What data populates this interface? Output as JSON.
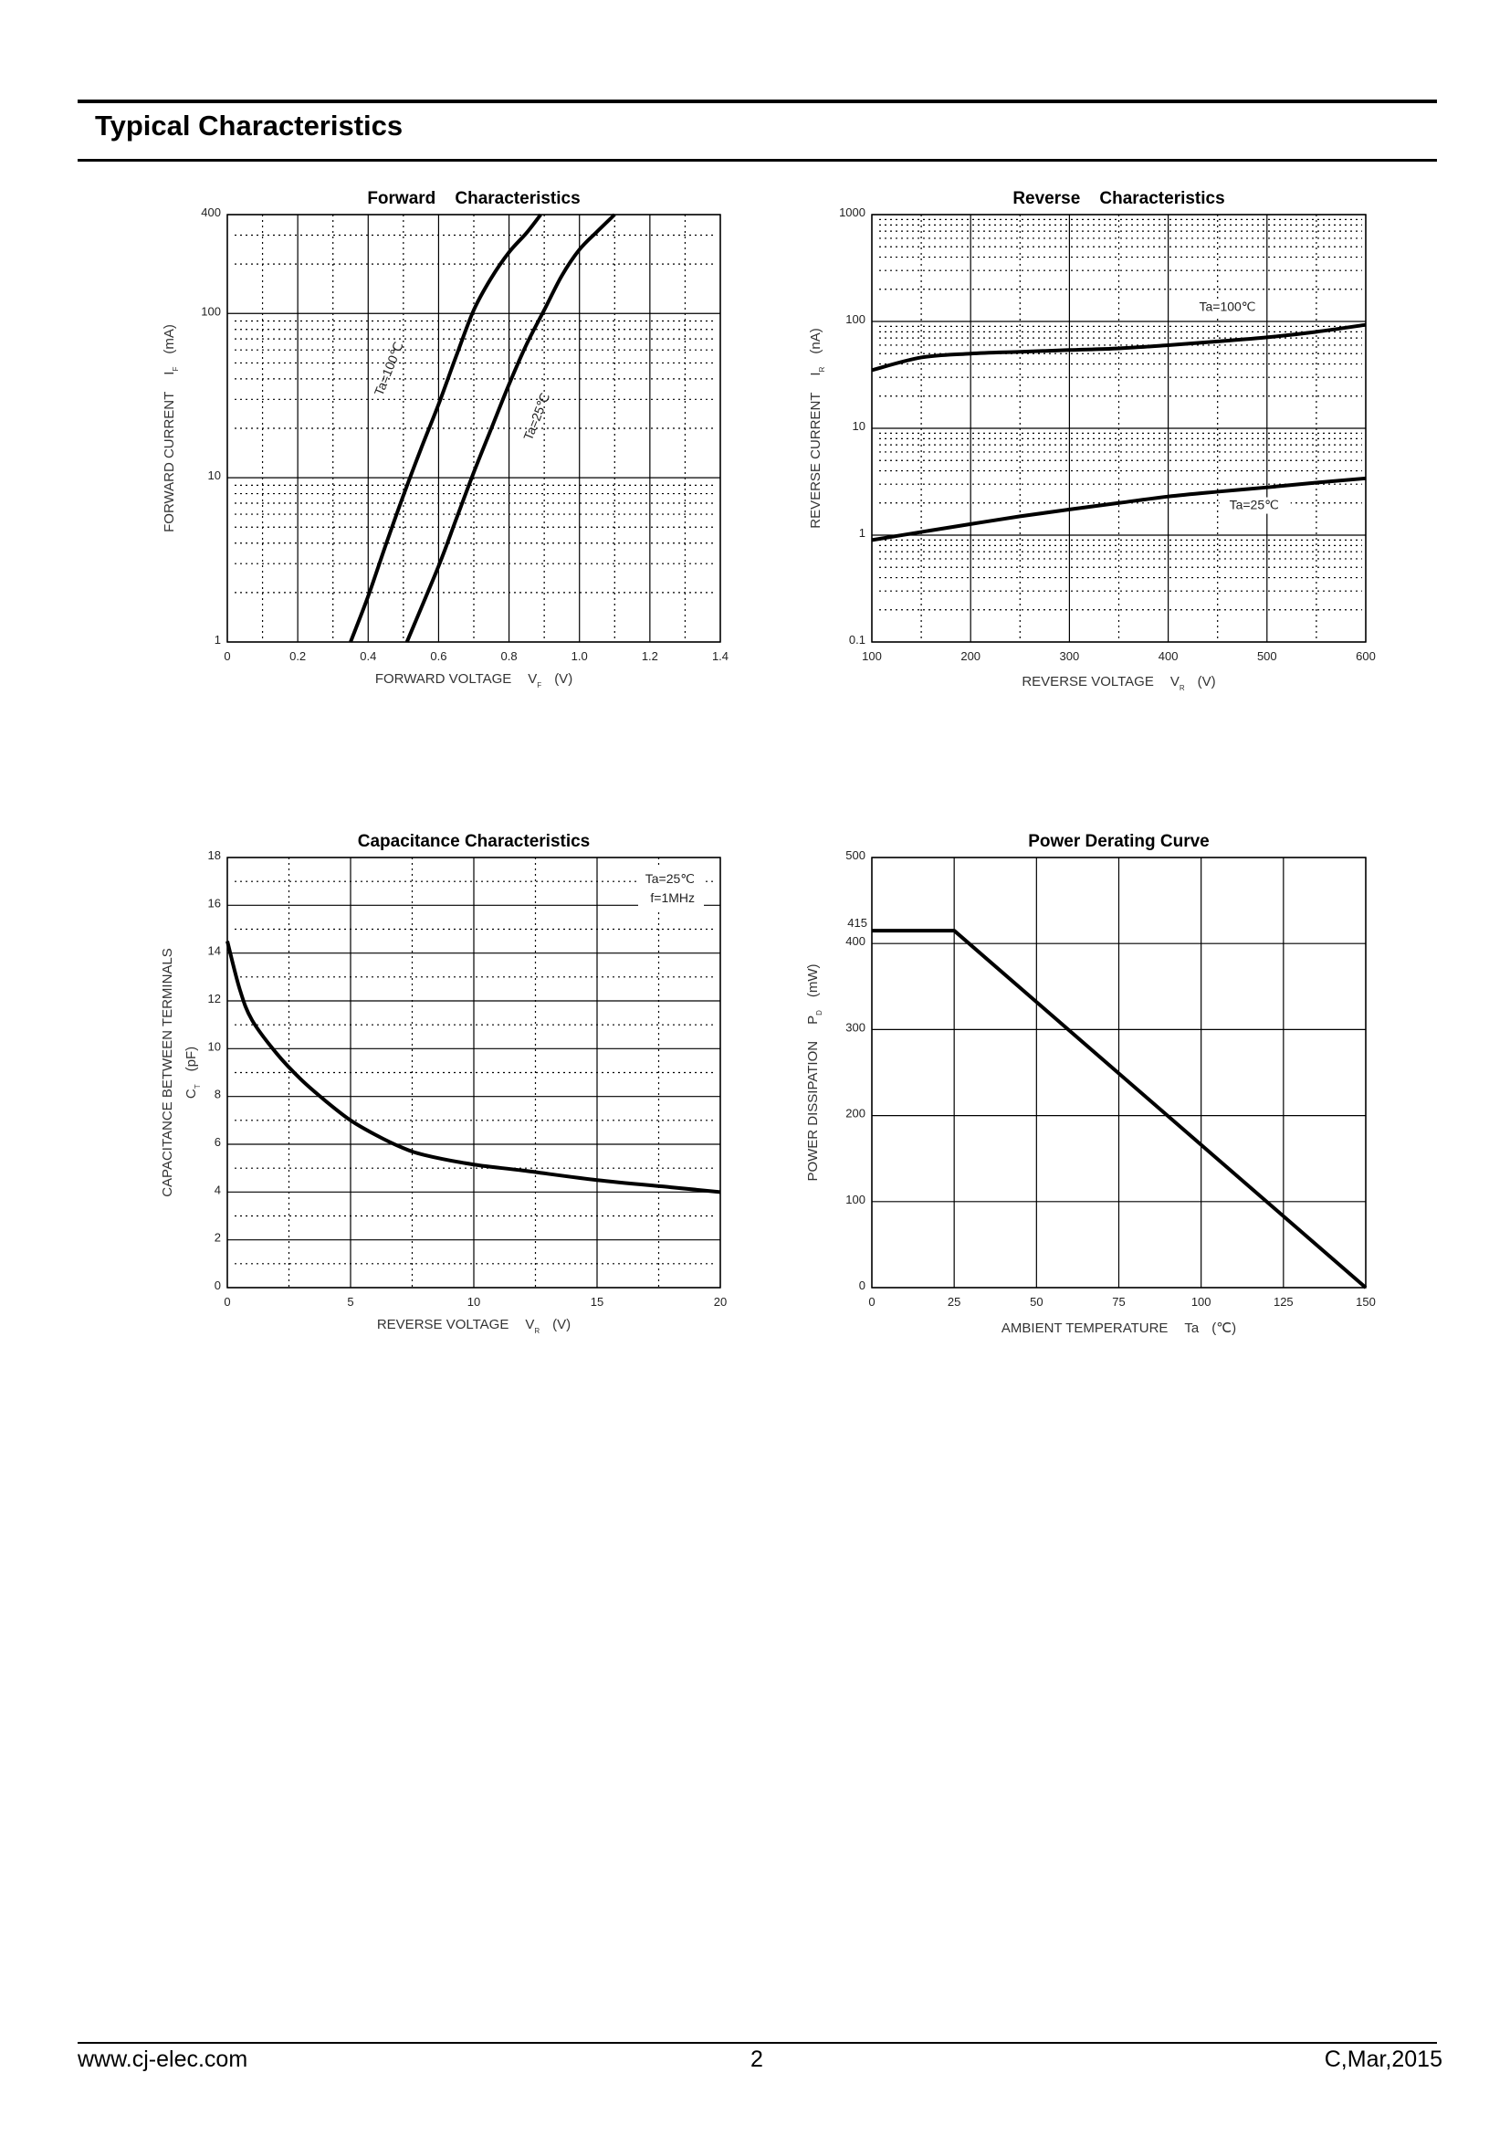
{
  "header": {
    "title": "Typical Characteristics"
  },
  "footer": {
    "url": "www.cj-elec.com",
    "page": "2",
    "revision": "C,Mar,2015"
  },
  "chart_data": [
    {
      "id": "forward",
      "type": "line",
      "title": "Forward    Characteristics",
      "xlabel": {
        "text": "FORWARD VOLTAGE",
        "symbol": "V",
        "sub": "F",
        "unit": "(V)"
      },
      "ylabel": {
        "text": "FORWARD CURRENT",
        "symbol": "I",
        "sub": "F",
        "unit": "(mA)"
      },
      "xscale": "linear",
      "yscale": "log",
      "xlim": [
        0,
        1.4
      ],
      "ylim": [
        1,
        400
      ],
      "xticks": [
        "0",
        "0.2",
        "0.4",
        "0.6",
        "0.8",
        "1.0",
        "1.2",
        "1.4"
      ],
      "yticks": [
        "1",
        "10",
        "100",
        "400"
      ],
      "grid": true,
      "series": [
        {
          "name": "Ta=100℃",
          "x": [
            0.35,
            0.4,
            0.45,
            0.5,
            0.55,
            0.6,
            0.65,
            0.7,
            0.75,
            0.8,
            0.85,
            0.89
          ],
          "y": [
            1,
            1.9,
            3.9,
            7.8,
            15,
            28,
            55,
            105,
            165,
            236,
            310,
            400
          ]
        },
        {
          "name": "Ta=25℃",
          "x": [
            0.51,
            0.6,
            0.65,
            0.7,
            0.75,
            0.8,
            0.85,
            0.9,
            0.95,
            1.0,
            1.05,
            1.1
          ],
          "y": [
            1,
            2.9,
            5.6,
            10.8,
            20,
            37,
            65,
            105,
            170,
            245,
            315,
            400
          ]
        }
      ],
      "annotations": [
        {
          "text": "Ta=100℃",
          "x": 0.47,
          "y": 45
        },
        {
          "text": "Ta=25℃",
          "x": 0.89,
          "y": 23
        }
      ]
    },
    {
      "id": "reverse",
      "type": "line",
      "title": "Reverse    Characteristics",
      "xlabel": {
        "text": "REVERSE VOLTAGE",
        "symbol": "V",
        "sub": "R",
        "unit": "(V)"
      },
      "ylabel": {
        "text": "REVERSE CURRENT",
        "symbol": "I",
        "sub": "R",
        "unit": "(nA)"
      },
      "xscale": "linear",
      "yscale": "log",
      "xlim": [
        100,
        600
      ],
      "ylim": [
        0.1,
        1000
      ],
      "xticks": [
        "100",
        "200",
        "300",
        "400",
        "500",
        "600"
      ],
      "yticks": [
        "0.1",
        "1",
        "10",
        "100",
        "1000"
      ],
      "grid": true,
      "series": [
        {
          "name": "Ta=100℃",
          "x": [
            100,
            150,
            200,
            250,
            300,
            350,
            400,
            450,
            500,
            550,
            600
          ],
          "y": [
            35,
            46,
            50,
            52,
            54,
            56,
            60,
            65,
            71,
            80,
            93
          ]
        },
        {
          "name": "Ta=25℃",
          "x": [
            100,
            150,
            200,
            250,
            300,
            350,
            400,
            450,
            500,
            550,
            600
          ],
          "y": [
            0.9,
            1.07,
            1.27,
            1.5,
            1.74,
            2.0,
            2.3,
            2.55,
            2.8,
            3.1,
            3.4
          ]
        }
      ],
      "annotations": [
        {
          "text": "Ta=100℃",
          "x": 460,
          "y": 125
        },
        {
          "text": "Ta=25℃",
          "x": 487,
          "y": 1.75
        }
      ]
    },
    {
      "id": "capacitance",
      "type": "line",
      "title": "Capacitance Characteristics",
      "xlabel": {
        "text": "REVERSE VOLTAGE",
        "symbol": "V",
        "sub": "R",
        "unit": "(V)"
      },
      "ylabel": {
        "text": "CAPACITANCE BETWEEN TERMINALS",
        "symbol": "C",
        "sub": "T",
        "unit": "(pF)"
      },
      "xscale": "linear",
      "yscale": "linear",
      "xlim": [
        0,
        20
      ],
      "ylim": [
        0,
        18
      ],
      "xticks": [
        "0",
        "5",
        "10",
        "15",
        "20"
      ],
      "yticks": [
        "0",
        "2",
        "4",
        "6",
        "8",
        "10",
        "12",
        "14",
        "16",
        "18"
      ],
      "grid": true,
      "series": [
        {
          "name": "Ta=25℃, f=1MHz",
          "x": [
            0,
            0.5,
            1,
            2,
            3,
            4,
            5,
            6,
            7,
            8,
            10,
            12,
            15,
            18,
            20
          ],
          "y": [
            14.5,
            12.5,
            11.2,
            9.8,
            8.7,
            7.8,
            7.0,
            6.4,
            5.9,
            5.55,
            5.15,
            4.9,
            4.5,
            4.2,
            4.0
          ]
        }
      ],
      "legend": [
        "Ta=25℃",
        "f=1MHz"
      ]
    },
    {
      "id": "power",
      "type": "line",
      "title": "Power Derating Curve",
      "xlabel": {
        "text": "AMBIENT TEMPERATURE",
        "symbol": "Ta",
        "sub": "",
        "unit": "(℃)"
      },
      "ylabel": {
        "text": "POWER DISSIPATION",
        "symbol": "P",
        "sub": "D",
        "unit": "(mW)"
      },
      "xscale": "linear",
      "yscale": "linear",
      "xlim": [
        0,
        150
      ],
      "ylim": [
        0,
        500
      ],
      "xticks": [
        "0",
        "25",
        "50",
        "75",
        "100",
        "125",
        "150"
      ],
      "yticks": [
        "0",
        "100",
        "200",
        "300",
        "400",
        "500"
      ],
      "extra_ytick": "415",
      "grid": true,
      "series": [
        {
          "name": "PD",
          "x": [
            0,
            25,
            150
          ],
          "y": [
            415,
            415,
            0
          ]
        }
      ]
    }
  ]
}
